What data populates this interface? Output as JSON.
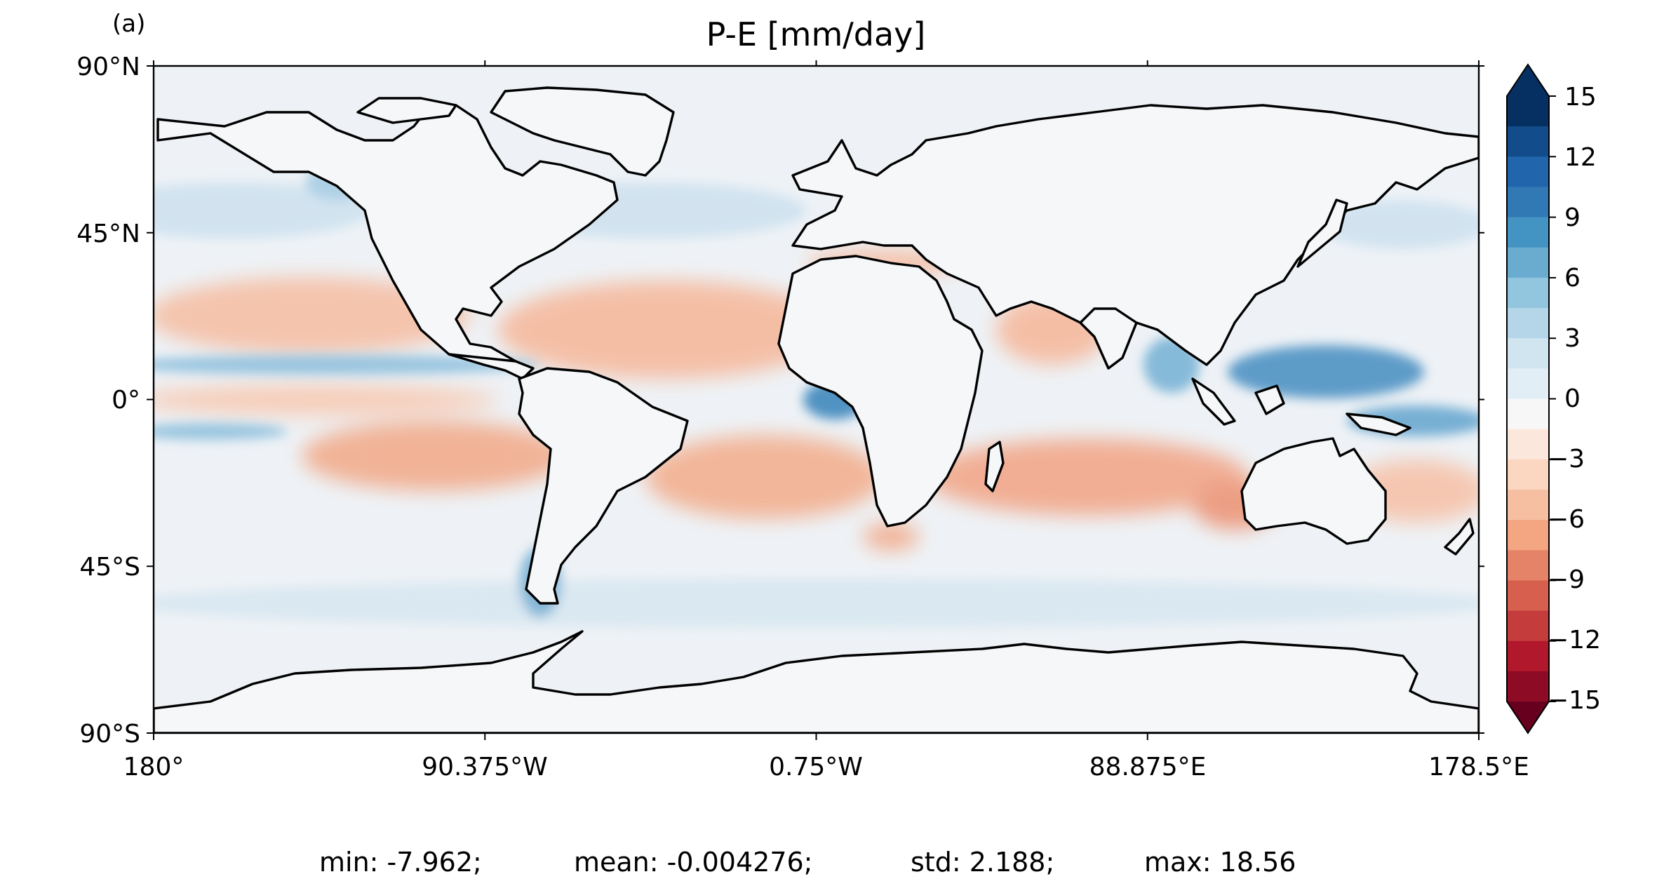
{
  "panel_label": "(a)",
  "title": "P-E [mm/day]",
  "colors": {
    "ocean_base": "#eef2f6",
    "land": "#f5f7f9",
    "coast": "#000000"
  },
  "chart_data": {
    "type": "heatmap",
    "title": "P-E [mm/day]",
    "y_ticks": [
      "90°N",
      "45°N",
      "0°",
      "45°S",
      "90°S"
    ],
    "x_ticks": [
      "180°",
      "90.375°W",
      "0.75°W",
      "88.875°E",
      "178.5°E"
    ],
    "xlim": [
      -180,
      178.5
    ],
    "ylim": [
      -90,
      90
    ],
    "colorbar": {
      "ticks": [
        "15",
        "12",
        "9",
        "6",
        "3",
        "0",
        "−3",
        "−6",
        "−9",
        "−12",
        "−15"
      ],
      "range": [
        -15,
        15
      ],
      "step": 1.5,
      "extend": "both",
      "colors": [
        "#67001f",
        "#8d0b25",
        "#b2182b",
        "#c43c3c",
        "#d6604d",
        "#e58368",
        "#f4a582",
        "#f7bfa2",
        "#fbd7c2",
        "#fce7dc",
        "#f7f7f7",
        "#e2eef5",
        "#d1e5f0",
        "#b4d6e8",
        "#92c5de",
        "#6aacd0",
        "#4393c3",
        "#3179b5",
        "#2166ac",
        "#124c8a",
        "#053061"
      ]
    },
    "stats": {
      "min": "min: -7.962;",
      "mean": "mean: -0.004276;",
      "std": "std: 2.188;",
      "max": "max: 18.56"
    }
  }
}
